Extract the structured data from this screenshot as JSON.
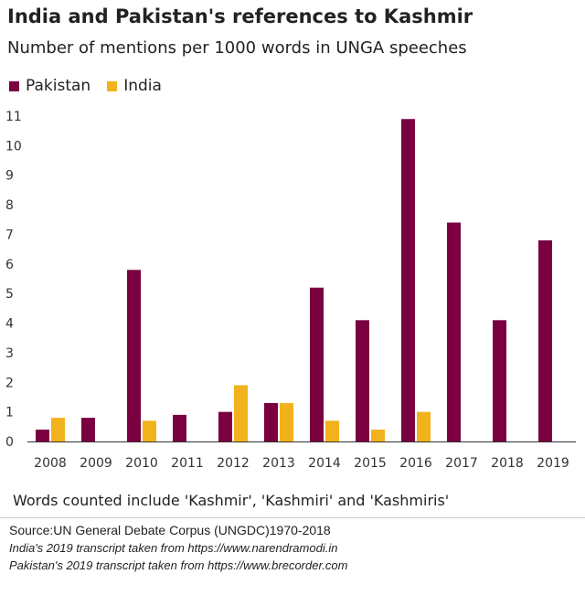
{
  "chart_data": {
    "type": "bar",
    "title": "India and Pakistan's references to Kashmir",
    "subtitle": "Number of mentions per 1000 words in UNGA speeches",
    "categories": [
      "2008",
      "2009",
      "2010",
      "2011",
      "2012",
      "2013",
      "2014",
      "2015",
      "2016",
      "2017",
      "2018",
      "2019"
    ],
    "series": [
      {
        "name": "Pakistan",
        "color": "#7a0040",
        "values": [
          0.4,
          0.8,
          5.8,
          0.9,
          1.0,
          1.3,
          5.2,
          4.1,
          10.9,
          7.4,
          4.1,
          6.8
        ]
      },
      {
        "name": "India",
        "color": "#f2b21b",
        "values": [
          0.8,
          0,
          0.7,
          0,
          1.9,
          1.3,
          0.7,
          0.4,
          1.0,
          0,
          0,
          0
        ]
      }
    ],
    "ylim": [
      0,
      11
    ],
    "yticks": [
      0,
      1,
      2,
      3,
      4,
      5,
      6,
      7,
      8,
      9,
      10,
      11
    ],
    "grid": false,
    "legend_position": "top-left"
  },
  "note": "Words counted include 'Kashmir', 'Kashmiri' and 'Kashmiris'",
  "source": "Source:UN General Debate Corpus (UNGDC)1970-2018",
  "source_india": "India's 2019 transcript taken from https://www.narendramodi.in",
  "source_pakistan": "Pakistan's 2019 transcript taken from https://www.brecorder.com"
}
